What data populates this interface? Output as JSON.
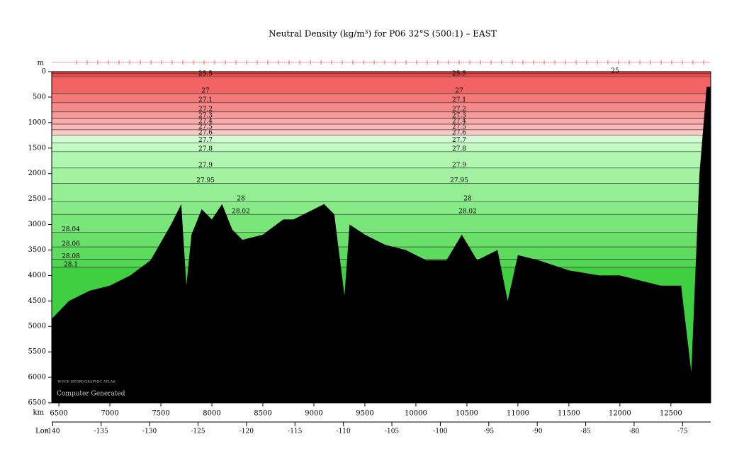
{
  "chart_data": {
    "type": "section",
    "title": "Neutral Density (kg/m³) for P06 32°S (500:1) – EAST",
    "y_label": "m",
    "x_label": "km",
    "lon_label": "Lon",
    "credit": "Computer Generated",
    "logo": "WOCE HYDROGRAPHIC ATLAS",
    "ylim": [
      0,
      6500
    ],
    "yticks": [
      0,
      500,
      1000,
      1500,
      2000,
      2500,
      3000,
      3500,
      4000,
      4500,
      5000,
      5500,
      6000,
      6500
    ],
    "xlim": [
      6430,
      12890
    ],
    "xticks": [
      6500,
      7000,
      7500,
      8000,
      8500,
      9000,
      9500,
      10000,
      10500,
      11000,
      11500,
      12000,
      12500
    ],
    "lonlim": [
      -140.1,
      -72.1
    ],
    "lonticks": [
      -140,
      -135,
      -130,
      -125,
      -120,
      -115,
      -110,
      -105,
      -100,
      -95,
      -90,
      -85,
      -80,
      -75
    ],
    "contour_levels": [
      25,
      25.5,
      27,
      27.1,
      27.2,
      27.3,
      27.4,
      27.5,
      27.6,
      27.7,
      27.8,
      27.9,
      27.95,
      28,
      28.02,
      28.04,
      28.06,
      28.08,
      28.1
    ],
    "contour_depths": [
      40,
      100,
      430,
      610,
      790,
      920,
      1030,
      1140,
      1250,
      1400,
      1570,
      1890,
      2190,
      2550,
      2800,
      3150,
      3440,
      3680,
      3840
    ],
    "fill_colors": [
      "#e83838",
      "#ee4c4c",
      "#f26464",
      "#f47a7a",
      "#f68a8a",
      "#f79a9a",
      "#f9aaaa",
      "#fab8b8",
      "#fcc8c8",
      "#d2fdd2",
      "#c2fac2",
      "#b0f6b0",
      "#a2f2a2",
      "#94ee94",
      "#86ea86",
      "#78e678",
      "#6ae06a",
      "#5cdb5c",
      "#50d650"
    ],
    "deep_color": "#40cf40",
    "bottom_color": "#000000",
    "bottom_km": [
      6430,
      6600,
      6800,
      7000,
      7200,
      7400,
      7600,
      7700,
      7750,
      7800,
      7900,
      8000,
      8100,
      8200,
      8300,
      8500,
      8700,
      8800,
      9000,
      9100,
      9200,
      9300,
      9350,
      9500,
      9700,
      9900,
      10100,
      10300,
      10450,
      10600,
      10800,
      10900,
      11000,
      11200,
      11500,
      11800,
      12000,
      12200,
      12400,
      12600,
      12700,
      12780,
      12850,
      12890
    ],
    "bottom_depth": [
      4850,
      4500,
      4300,
      4200,
      4000,
      3700,
      3000,
      2600,
      4200,
      3200,
      2700,
      2900,
      2600,
      3100,
      3300,
      3200,
      2900,
      2900,
      2700,
      2600,
      2800,
      4400,
      3000,
      3200,
      3400,
      3500,
      3700,
      3700,
      3200,
      3700,
      3500,
      4500,
      3600,
      3700,
      3900,
      4000,
      4000,
      4100,
      4200,
      4200,
      5900,
      2000,
      300,
      300
    ]
  }
}
